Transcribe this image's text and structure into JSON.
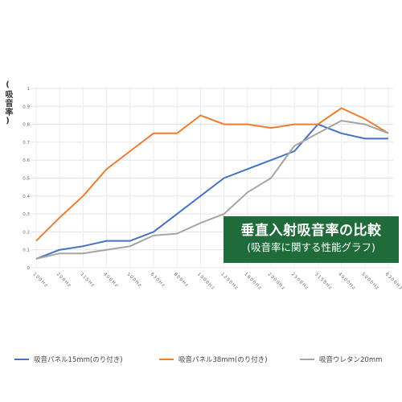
{
  "chart_data": {
    "type": "line",
    "title": "垂直入射吸音率の比較",
    "subtitle": "(吸音率に関する性能グラフ)",
    "xlabel": "",
    "ylabel": "(吸音率)",
    "ylim": [
      0,
      1
    ],
    "yticks": [
      "0",
      "0.1",
      "0.2",
      "0.3",
      "0.4",
      "0.5",
      "0.6",
      "0.7",
      "0.8",
      "0.9",
      "1"
    ],
    "categories": [
      "100Hz",
      "200Hz",
      "315Hz",
      "400Hz",
      "500Hz",
      "630Hz",
      "800Hz",
      "1000Hz",
      "1250Hz",
      "1600Hz",
      "2000Hz",
      "2500Hz",
      "3150Hz",
      "4000Hz",
      "5000Hz",
      "6300Hz"
    ],
    "grid": true,
    "legend_position": "bottom",
    "series": [
      {
        "name": "吸音パネル15mm(のり付き)",
        "color": "#4472c4",
        "values": [
          0.05,
          0.1,
          0.12,
          0.15,
          0.15,
          0.2,
          0.3,
          0.4,
          0.5,
          0.55,
          0.6,
          0.65,
          0.8,
          0.75,
          0.72,
          0.72
        ]
      },
      {
        "name": "吸音パネル38mm(のり付き)",
        "color": "#ed7d31",
        "values": [
          0.15,
          0.28,
          0.4,
          0.55,
          0.65,
          0.75,
          0.75,
          0.85,
          0.8,
          0.8,
          0.78,
          0.8,
          0.8,
          0.89,
          0.83,
          0.75
        ]
      },
      {
        "name": "吸音ウレタン20mm",
        "color": "#a5a5a5",
        "values": [
          0.05,
          0.08,
          0.08,
          0.1,
          0.12,
          0.18,
          0.19,
          0.25,
          0.3,
          0.42,
          0.5,
          0.68,
          0.75,
          0.82,
          0.8,
          0.75
        ]
      }
    ]
  }
}
